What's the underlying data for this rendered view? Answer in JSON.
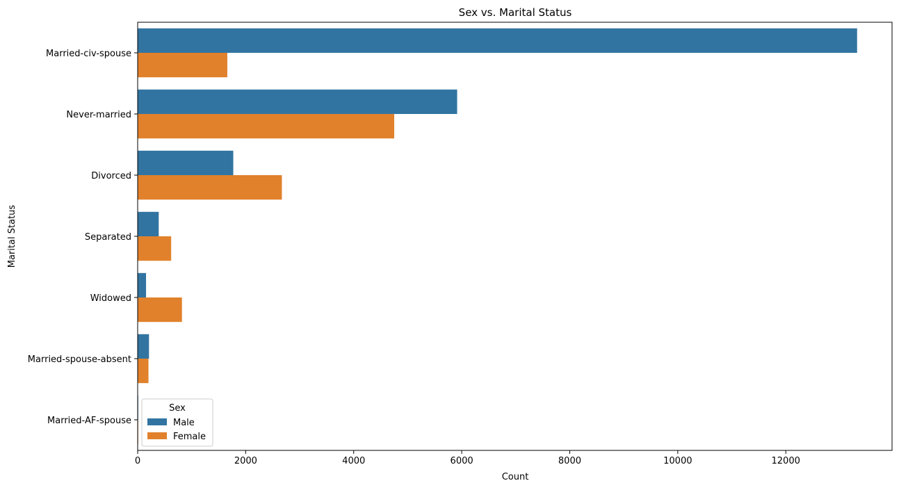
{
  "chart_data": {
    "type": "bar",
    "orientation": "horizontal",
    "title": "Sex vs. Marital Status",
    "xlabel": "Count",
    "ylabel": "Marital Status",
    "xlim": [
      0,
      13967
    ],
    "xticks": [
      0,
      2000,
      4000,
      6000,
      8000,
      10000,
      12000
    ],
    "grid": false,
    "legend_position": "lower-left",
    "legend_title": "Sex",
    "categories": [
      "Married-civ-spouse",
      "Never-married",
      "Divorced",
      "Separated",
      "Widowed",
      "Married-spouse-absent",
      "Married-AF-spouse"
    ],
    "series": [
      {
        "name": "Male",
        "color": "#3274a1",
        "values": [
          13320,
          5915,
          1770,
          390,
          155,
          210,
          10
        ]
      },
      {
        "name": "Female",
        "color": "#e1812c",
        "values": [
          1660,
          4750,
          2670,
          620,
          820,
          200,
          10
        ]
      }
    ]
  }
}
